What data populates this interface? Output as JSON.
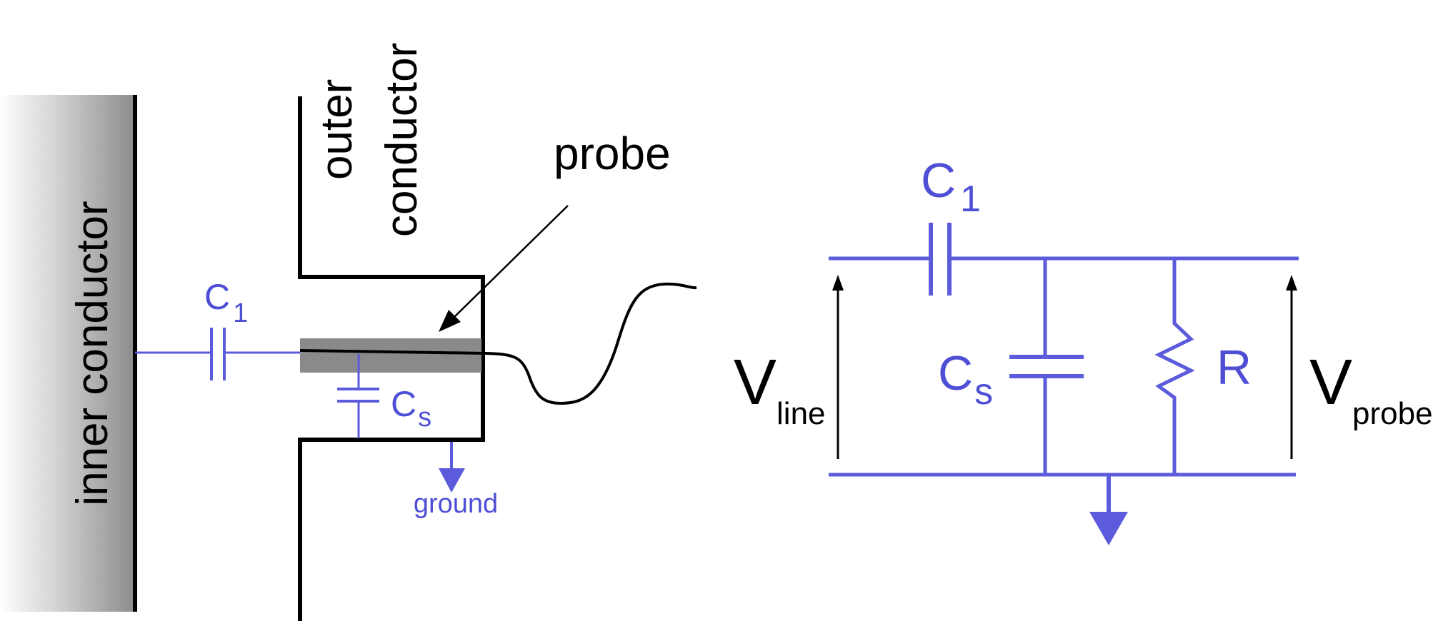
{
  "physical": {
    "inner_conductor": "inner conductor",
    "outer_conductor_line1": "outer",
    "outer_conductor_line2": "conductor",
    "probe": "probe",
    "c1_main": "C",
    "c1_sub": "1",
    "cs_main": "C",
    "cs_sub": "s",
    "ground": "ground"
  },
  "circuit": {
    "c1_main": "C",
    "c1_sub": "1",
    "cs_main": "C",
    "cs_sub": "s",
    "r": "R",
    "vline_main": "V",
    "vline_sub": "line",
    "vprobe_main": "V",
    "vprobe_sub": "probe"
  },
  "colors": {
    "wire_blue": "#5b5bdc",
    "text_blue": "#4f4fd6",
    "black": "#000000",
    "probe_gray": "#8a8a8a"
  }
}
